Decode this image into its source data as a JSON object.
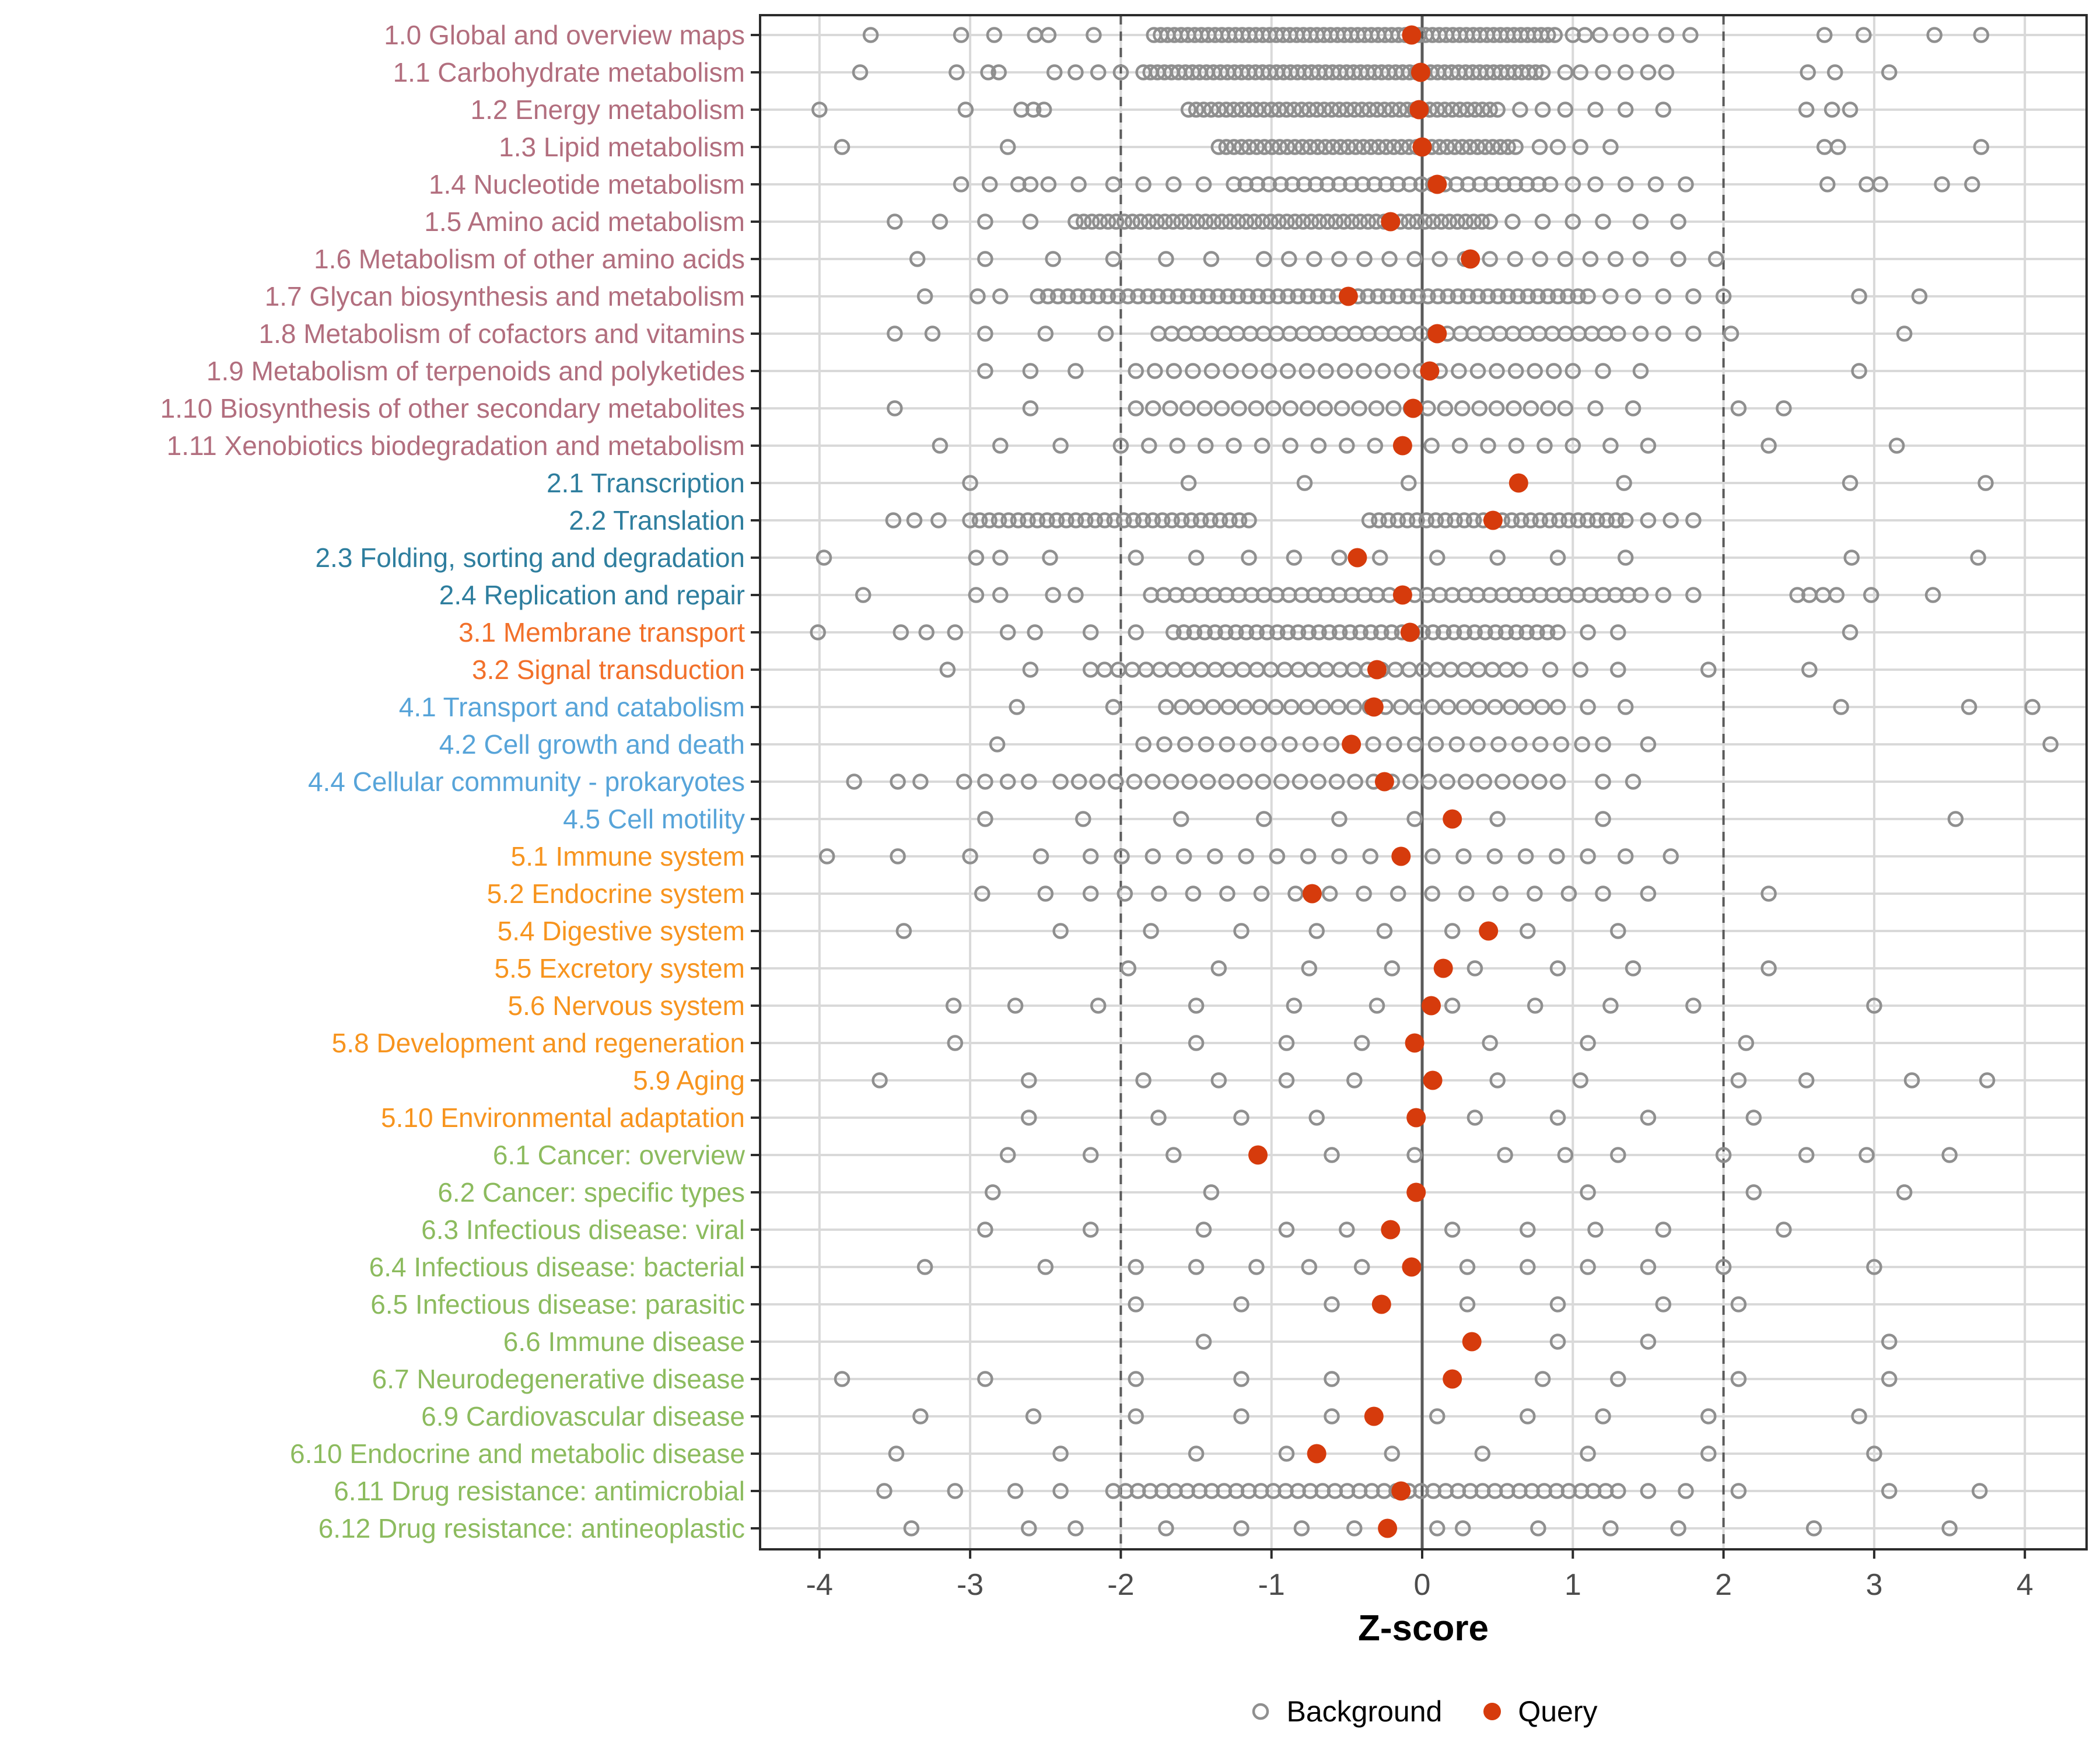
{
  "chart_data": {
    "type": "scatter",
    "variant": "horizontal-strip-dot-plot",
    "title": "",
    "xlabel": "Z-score",
    "ylabel": "",
    "xlim": [
      -4.4,
      4.4
    ],
    "x_ticks": [
      -4,
      -3,
      -2,
      -1,
      0,
      1,
      2,
      3,
      4
    ],
    "grid": true,
    "reference_lines": {
      "solid": [
        0
      ],
      "dashed": [
        -2,
        2
      ]
    },
    "legend": {
      "position": "bottom-center",
      "background_label": "Background",
      "query_label": "Query"
    },
    "colors": {
      "query": "#d63b0c",
      "background_stroke": "#8f8f8f",
      "gridline": "#d9d9d9",
      "reference_line": "#5a5a5a",
      "axis_text": "#4d4d4d",
      "axis_title": "#000000",
      "panel_border": "#2b2b2b",
      "group_colors": {
        "1": "#b26e7e",
        "2": "#2e7e9e",
        "3": "#f2702a",
        "4": "#57a4d9",
        "5": "#f7941e",
        "6": "#8cbb5e"
      }
    },
    "rows": [
      {
        "label": "1.0 Global and overview maps",
        "group": "1",
        "query": -0.07,
        "bg_core": [
          [
            -1.78,
            0.88,
            60
          ]
        ],
        "bg_points": [
          -3.66,
          -3.06,
          -2.84,
          -2.57,
          -2.48,
          -2.18,
          1.0,
          1.08,
          1.18,
          1.32,
          1.45,
          1.62,
          1.78,
          2.67,
          2.93,
          3.4,
          3.71
        ]
      },
      {
        "label": "1.1 Carbohydrate metabolism",
        "group": "1",
        "query": -0.01,
        "bg_core": [
          [
            -1.85,
            0.8,
            58
          ]
        ],
        "bg_points": [
          -3.73,
          -3.09,
          -2.88,
          -2.81,
          -2.44,
          -2.3,
          -2.15,
          -2.0,
          0.95,
          1.05,
          1.2,
          1.35,
          1.5,
          1.62,
          2.56,
          2.74,
          3.1
        ]
      },
      {
        "label": "1.2 Energy metabolism",
        "group": "1",
        "query": -0.02,
        "bg_core": [
          [
            -1.55,
            0.5,
            42
          ]
        ],
        "bg_points": [
          -4.0,
          -3.03,
          -2.66,
          -2.58,
          -2.51,
          0.65,
          0.8,
          0.95,
          1.15,
          1.35,
          1.6,
          2.55,
          2.72,
          2.84
        ]
      },
      {
        "label": "1.3 Lipid metabolism",
        "group": "1",
        "query": 0.0,
        "bg_core": [
          [
            -1.35,
            0.62,
            40
          ]
        ],
        "bg_points": [
          -3.85,
          -2.75,
          0.78,
          0.9,
          1.05,
          1.25,
          2.67,
          2.76,
          3.71
        ]
      },
      {
        "label": "1.4 Nucleotide metabolism",
        "group": "1",
        "query": 0.1,
        "bg_core": [
          [
            -1.25,
            0.85,
            28
          ]
        ],
        "bg_points": [
          -3.06,
          -2.87,
          -2.68,
          -2.6,
          -2.48,
          -2.28,
          -2.05,
          -1.85,
          -1.65,
          -1.45,
          1.0,
          1.15,
          1.35,
          1.55,
          1.75,
          2.69,
          2.95,
          3.04,
          3.45,
          3.65
        ]
      },
      {
        "label": "1.5 Amino acid metabolism",
        "group": "1",
        "query": -0.21,
        "bg_core": [
          [
            -2.3,
            0.45,
            52
          ]
        ],
        "bg_points": [
          -3.5,
          -3.2,
          -2.9,
          -2.6,
          0.6,
          0.8,
          1.0,
          1.2,
          1.45,
          1.7
        ]
      },
      {
        "label": "1.6 Metabolism of other amino acids",
        "group": "1",
        "query": 0.32,
        "bg_core": [
          [
            -1.05,
            1.45,
            16
          ]
        ],
        "bg_points": [
          -3.35,
          -2.9,
          -2.45,
          -2.05,
          -1.7,
          -1.4,
          1.7,
          1.95
        ]
      },
      {
        "label": "1.7 Glycan biosynthesis and metabolism",
        "group": "1",
        "query": -0.49,
        "bg_core": [
          [
            -2.55,
            1.1,
            56
          ]
        ],
        "bg_points": [
          -3.3,
          -2.95,
          -2.8,
          1.25,
          1.4,
          1.6,
          1.8,
          2.0,
          2.9,
          3.3
        ]
      },
      {
        "label": "1.8 Metabolism of cofactors and vitamins",
        "group": "1",
        "query": 0.1,
        "bg_core": [
          [
            -1.75,
            1.3,
            36
          ]
        ],
        "bg_points": [
          -3.5,
          -3.25,
          -2.9,
          -2.5,
          -2.1,
          1.45,
          1.6,
          1.8,
          2.05,
          3.2
        ]
      },
      {
        "label": "1.9 Metabolism of terpenoids and polyketides",
        "group": "1",
        "query": 0.05,
        "bg_core": [
          [
            -1.9,
            1.0,
            24
          ]
        ],
        "bg_points": [
          -2.9,
          -2.6,
          -2.3,
          1.2,
          1.45,
          2.9
        ]
      },
      {
        "label": "1.10 Biosynthesis of other secondary metabolites",
        "group": "1",
        "query": -0.06,
        "bg_core": [
          [
            -1.9,
            0.95,
            26
          ]
        ],
        "bg_points": [
          -3.5,
          -2.6,
          1.15,
          1.4,
          2.1,
          2.4
        ]
      },
      {
        "label": "1.11 Xenobiotics biodegradation and metabolism",
        "group": "1",
        "query": -0.13,
        "bg_core": [
          [
            -2.0,
            1.0,
            17
          ]
        ],
        "bg_points": [
          -3.2,
          -2.8,
          -2.4,
          1.25,
          1.5,
          2.3,
          3.15
        ]
      },
      {
        "label": "2.1 Transcription",
        "group": "2",
        "query": 0.64,
        "bg_core": [],
        "bg_points": [
          -3.0,
          -1.55,
          -0.78,
          -0.09,
          1.34,
          2.84,
          3.74
        ]
      },
      {
        "label": "2.2 Translation",
        "group": "2",
        "query": 0.47,
        "bg_core": [
          [
            -3.0,
            -1.15,
            30
          ],
          [
            -0.35,
            1.35,
            28
          ]
        ],
        "bg_points": [
          -3.51,
          -3.37,
          -3.21,
          1.5,
          1.65,
          1.8
        ]
      },
      {
        "label": "2.3 Folding, sorting and degradation",
        "group": "2",
        "query": -0.43,
        "bg_core": [],
        "bg_points": [
          -3.97,
          -2.96,
          -2.8,
          -2.47,
          -1.9,
          -1.5,
          -1.15,
          -0.85,
          -0.55,
          -0.28,
          0.1,
          0.5,
          0.9,
          1.35,
          2.85,
          3.69
        ]
      },
      {
        "label": "2.4 Replication and repair",
        "group": "2",
        "query": -0.13,
        "bg_core": [
          [
            -1.8,
            1.45,
            40
          ]
        ],
        "bg_points": [
          -3.71,
          -2.96,
          -2.8,
          -2.45,
          -2.3,
          1.6,
          1.8,
          2.49,
          2.57,
          2.66,
          2.75,
          2.98,
          3.39
        ]
      },
      {
        "label": "3.1 Membrane transport",
        "group": "3",
        "query": -0.08,
        "bg_core": [
          [
            -1.65,
            0.9,
            38
          ]
        ],
        "bg_points": [
          -4.01,
          -3.46,
          -3.29,
          -3.1,
          -2.75,
          -2.57,
          -2.2,
          -1.9,
          1.1,
          1.3,
          2.84
        ]
      },
      {
        "label": "3.2 Signal transduction",
        "group": "3",
        "query": -0.3,
        "bg_core": [
          [
            -2.2,
            0.65,
            32
          ]
        ],
        "bg_points": [
          -3.15,
          -2.6,
          0.85,
          1.05,
          1.3,
          1.9,
          2.57
        ]
      },
      {
        "label": "4.1 Transport and catabolism",
        "group": "4",
        "query": -0.32,
        "bg_core": [
          [
            -1.7,
            0.9,
            26
          ]
        ],
        "bg_points": [
          -2.69,
          -2.05,
          1.1,
          1.35,
          2.78,
          3.63,
          4.05
        ]
      },
      {
        "label": "4.2 Cell growth and death",
        "group": "4",
        "query": -0.47,
        "bg_core": [
          [
            -1.85,
            1.2,
            23
          ]
        ],
        "bg_points": [
          -2.82,
          1.5,
          4.17
        ]
      },
      {
        "label": "4.4 Cellular community - prokaryotes",
        "group": "4",
        "query": -0.25,
        "bg_core": [
          [
            -2.4,
            0.9,
            28
          ]
        ],
        "bg_points": [
          -3.77,
          -3.48,
          -3.33,
          -3.04,
          -2.9,
          -2.75,
          -2.61,
          1.2,
          1.4
        ]
      },
      {
        "label": "4.5 Cell motility",
        "group": "4",
        "query": 0.2,
        "bg_core": [],
        "bg_points": [
          -2.9,
          -2.25,
          -1.6,
          -1.05,
          -0.55,
          -0.05,
          0.5,
          1.2,
          3.54
        ]
      },
      {
        "label": "5.1 Immune system",
        "group": "5",
        "query": -0.14,
        "bg_core": [
          [
            -2.2,
            1.1,
            17
          ]
        ],
        "bg_points": [
          -3.95,
          -3.48,
          -3.0,
          -2.53,
          1.35,
          1.65
        ]
      },
      {
        "label": "5.2 Endocrine system",
        "group": "5",
        "query": -0.73,
        "bg_core": [
          [
            -2.2,
            1.2,
            16
          ]
        ],
        "bg_points": [
          -2.92,
          -2.5,
          1.5,
          2.3
        ]
      },
      {
        "label": "5.4 Digestive system",
        "group": "5",
        "query": 0.44,
        "bg_core": [],
        "bg_points": [
          -3.44,
          -2.4,
          -1.8,
          -1.2,
          -0.7,
          -0.25,
          0.2,
          0.7,
          1.3
        ]
      },
      {
        "label": "5.5 Excretory system",
        "group": "5",
        "query": 0.14,
        "bg_core": [],
        "bg_points": [
          -1.95,
          -1.35,
          -0.75,
          -0.2,
          0.35,
          0.9,
          1.4,
          2.3
        ]
      },
      {
        "label": "5.6 Nervous system",
        "group": "5",
        "query": 0.06,
        "bg_core": [],
        "bg_points": [
          -3.11,
          -2.7,
          -2.15,
          -1.5,
          -0.85,
          -0.3,
          0.2,
          0.75,
          1.25,
          1.8,
          3.0
        ]
      },
      {
        "label": "5.8 Development and regeneration",
        "group": "5",
        "query": -0.05,
        "bg_core": [],
        "bg_points": [
          -3.1,
          -1.5,
          -0.9,
          -0.4,
          0.45,
          1.1,
          2.15
        ]
      },
      {
        "label": "5.9 Aging",
        "group": "5",
        "query": 0.07,
        "bg_core": [],
        "bg_points": [
          -3.6,
          -2.61,
          -1.85,
          -1.35,
          -0.9,
          -0.45,
          0.5,
          1.05,
          2.1,
          2.55,
          3.25,
          3.75
        ]
      },
      {
        "label": "5.10 Environmental adaptation",
        "group": "5",
        "query": -0.04,
        "bg_core": [],
        "bg_points": [
          -2.61,
          -1.75,
          -1.2,
          -0.7,
          0.35,
          0.9,
          1.5,
          2.2
        ]
      },
      {
        "label": "6.1 Cancer: overview",
        "group": "6",
        "query": -1.09,
        "bg_core": [],
        "bg_points": [
          -2.75,
          -2.2,
          -1.65,
          -0.6,
          -0.05,
          0.55,
          0.95,
          1.3,
          2.0,
          2.55,
          2.95,
          3.5
        ]
      },
      {
        "label": "6.2 Cancer: specific types",
        "group": "6",
        "query": -0.04,
        "bg_core": [],
        "bg_points": [
          -2.85,
          -1.4,
          1.1,
          2.2,
          3.2
        ]
      },
      {
        "label": "6.3 Infectious disease: viral",
        "group": "6",
        "query": -0.21,
        "bg_core": [],
        "bg_points": [
          -2.9,
          -2.2,
          -1.45,
          -0.9,
          -0.5,
          0.2,
          0.7,
          1.15,
          1.6,
          2.4
        ]
      },
      {
        "label": "6.4 Infectious disease: bacterial",
        "group": "6",
        "query": -0.07,
        "bg_core": [],
        "bg_points": [
          -3.3,
          -2.5,
          -1.9,
          -1.5,
          -1.1,
          -0.75,
          -0.4,
          0.3,
          0.7,
          1.1,
          1.5,
          2.0,
          3.0
        ]
      },
      {
        "label": "6.5 Infectious disease: parasitic",
        "group": "6",
        "query": -0.27,
        "bg_core": [],
        "bg_points": [
          -1.9,
          -1.2,
          -0.6,
          0.3,
          0.9,
          1.6,
          2.1
        ]
      },
      {
        "label": "6.6 Immune disease",
        "group": "6",
        "query": 0.33,
        "bg_core": [],
        "bg_points": [
          -1.45,
          0.9,
          1.5,
          3.1
        ]
      },
      {
        "label": "6.7 Neurodegenerative disease",
        "group": "6",
        "query": 0.2,
        "bg_core": [],
        "bg_points": [
          -3.85,
          -2.9,
          -1.9,
          -1.2,
          -0.6,
          0.8,
          1.3,
          2.1,
          3.1
        ]
      },
      {
        "label": "6.9 Cardiovascular disease",
        "group": "6",
        "query": -0.32,
        "bg_core": [],
        "bg_points": [
          -3.33,
          -2.58,
          -1.9,
          -1.2,
          -0.6,
          0.1,
          0.7,
          1.2,
          1.9,
          2.9
        ]
      },
      {
        "label": "6.10 Endocrine and metabolic disease",
        "group": "6",
        "query": -0.7,
        "bg_core": [],
        "bg_points": [
          -3.49,
          -2.4,
          -1.5,
          -0.9,
          -0.2,
          0.4,
          1.1,
          1.9,
          3.0
        ]
      },
      {
        "label": "6.11 Drug resistance: antimicrobial",
        "group": "6",
        "query": -0.14,
        "bg_core": [
          [
            -2.05,
            1.3,
            42
          ]
        ],
        "bg_points": [
          -3.57,
          -3.1,
          -2.7,
          -2.4,
          1.5,
          1.75,
          2.1,
          3.1,
          3.7
        ]
      },
      {
        "label": "6.12 Drug resistance: antineoplastic",
        "group": "6",
        "query": -0.23,
        "bg_core": [],
        "bg_points": [
          -3.39,
          -2.61,
          -2.3,
          -1.7,
          -1.2,
          -0.8,
          -0.45,
          0.1,
          0.27,
          0.77,
          1.25,
          1.7,
          2.6,
          3.5
        ]
      }
    ]
  }
}
